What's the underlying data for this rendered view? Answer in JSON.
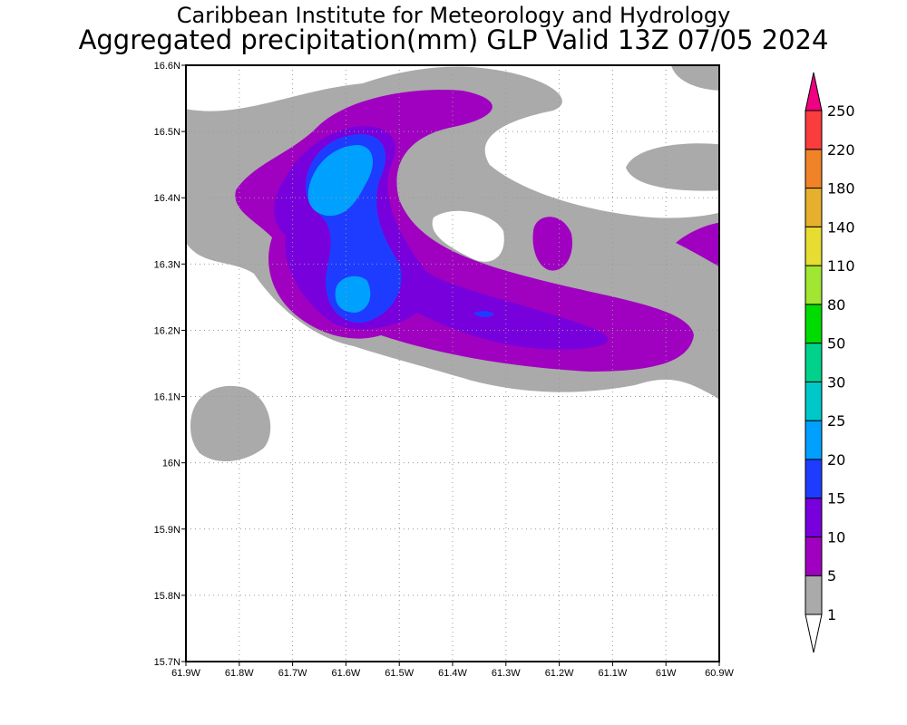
{
  "title_line1": "Caribbean Institute for Meteorology and Hydrology",
  "title_line2": "Aggregated precipitation(mm) GLP Valid 13Z 07/05 2024",
  "chart_data": {
    "type": "heatmap",
    "variable": "Aggregated precipitation (mm)",
    "xlim": [
      -61.9,
      -60.9
    ],
    "ylim": [
      15.7,
      16.6
    ],
    "x_ticks": [
      "61.9W",
      "61.8W",
      "61.7W",
      "61.6W",
      "61.5W",
      "61.4W",
      "61.3W",
      "61.2W",
      "61.1W",
      "61W",
      "60.9W"
    ],
    "y_ticks": [
      "15.7N",
      "15.8N",
      "15.9N",
      "16N",
      "16.1N",
      "16.2N",
      "16.3N",
      "16.4N",
      "16.5N",
      "16.6N"
    ],
    "grid": true,
    "colorbar": {
      "labels": [
        "1",
        "5",
        "10",
        "15",
        "20",
        "25",
        "30",
        "50",
        "80",
        "110",
        "140",
        "180",
        "220",
        "250"
      ],
      "colors": [
        "#aaaaaa",
        "#a000c0",
        "#7800dc",
        "#1e3cff",
        "#00a0ff",
        "#00c8c8",
        "#00d28c",
        "#00dc00",
        "#a0e632",
        "#e6dc32",
        "#e6af2d",
        "#f08228",
        "#fa3c3c",
        "#f00082"
      ],
      "placement": "right"
    }
  }
}
